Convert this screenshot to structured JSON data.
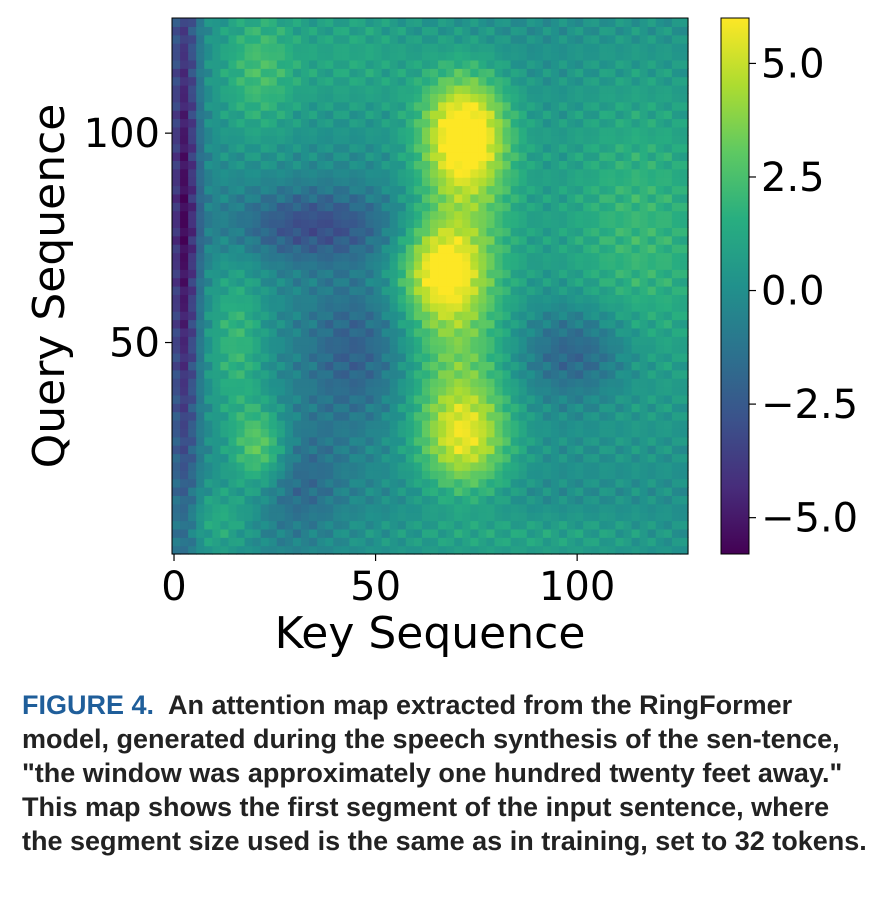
{
  "chart_data": {
    "type": "heatmap",
    "xlabel": "Key Sequence",
    "ylabel": "Query Sequence",
    "x_range": [
      0,
      127
    ],
    "y_range": [
      0,
      127
    ],
    "x_ticks": [
      "0",
      "50",
      "100"
    ],
    "y_ticks": [
      "50",
      "100"
    ],
    "colorbar": {
      "range": [
        -5.8,
        6.0
      ],
      "ticks": [
        "5.0",
        "2.5",
        "0.0",
        "−2.5",
        "−5.0"
      ],
      "colormap": "viridis"
    },
    "value_range": [
      -5.8,
      6.0
    ],
    "notable_regions": [
      {
        "x": 72,
        "y": 100,
        "level": "high"
      },
      {
        "x": 68,
        "y": 67,
        "level": "high"
      },
      {
        "x": 72,
        "y": 27,
        "level": "high"
      },
      {
        "x": 22,
        "y": 25,
        "level": "medium"
      },
      {
        "x": 3,
        "y": 80,
        "level": "low"
      },
      {
        "x": 100,
        "y": 48,
        "level": "low"
      }
    ]
  },
  "caption": {
    "label": "FIGURE 4.",
    "text": "An attention map extracted from the RingFormer model, generated during the speech synthesis of the sen-tence, \"the window was approximately one hundred twenty feet away.\" This map shows the first segment of the input sentence, where the segment size used is the same as in training, set to 32 tokens."
  }
}
